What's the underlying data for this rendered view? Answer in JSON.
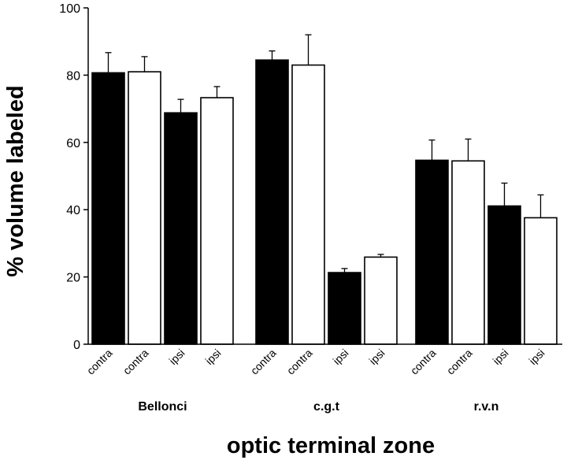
{
  "chart_data": {
    "type": "bar",
    "title": "",
    "xlabel": "optic terminal zone",
    "ylabel": "% volume labeled",
    "ylim": [
      0,
      100
    ],
    "yticks": [
      0,
      20,
      40,
      60,
      80,
      100
    ],
    "grid": false,
    "legend": "none",
    "colors": {
      "filled": "#000000",
      "open": "#ffffff",
      "stroke": "#000000"
    },
    "groups": [
      {
        "name": "Bellonci",
        "bars": [
          {
            "label": "contra",
            "value": 80.7,
            "error": 6.0,
            "fill": "filled"
          },
          {
            "label": "contra",
            "value": 81.0,
            "error": 4.5,
            "fill": "open"
          },
          {
            "label": "ipsi",
            "value": 68.8,
            "error": 4.0,
            "fill": "filled"
          },
          {
            "label": "ipsi",
            "value": 73.3,
            "error": 3.3,
            "fill": "open"
          }
        ]
      },
      {
        "name": "c.g.t",
        "bars": [
          {
            "label": "contra",
            "value": 84.5,
            "error": 2.7,
            "fill": "filled"
          },
          {
            "label": "contra",
            "value": 83.0,
            "error": 9.0,
            "fill": "open"
          },
          {
            "label": "ipsi",
            "value": 21.3,
            "error": 1.2,
            "fill": "filled"
          },
          {
            "label": "ipsi",
            "value": 25.9,
            "error": 0.8,
            "fill": "open"
          }
        ]
      },
      {
        "name": "r.v.n",
        "bars": [
          {
            "label": "contra",
            "value": 54.7,
            "error": 6.0,
            "fill": "filled"
          },
          {
            "label": "contra",
            "value": 54.5,
            "error": 6.5,
            "fill": "open"
          },
          {
            "label": "ipsi",
            "value": 41.1,
            "error": 6.8,
            "fill": "filled"
          },
          {
            "label": "ipsi",
            "value": 37.6,
            "error": 6.8,
            "fill": "open"
          }
        ]
      }
    ]
  }
}
